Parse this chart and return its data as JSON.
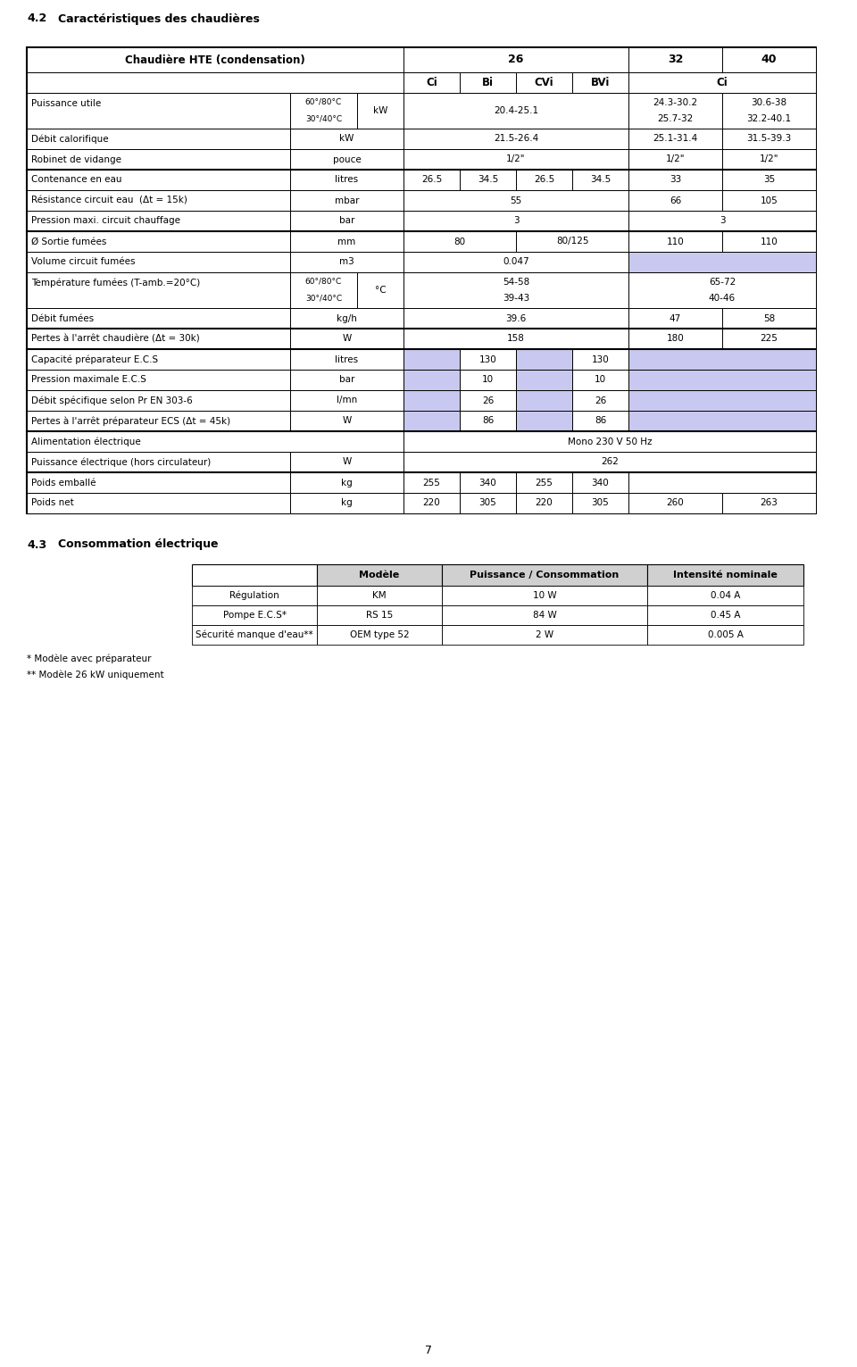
{
  "page_title_num": "4.2",
  "page_title_text": "  Caractéristiques des chaudières",
  "section2_num": "4.3",
  "section2_text": "   Consommation électrique",
  "footnote1": "* Modèle avec préparateur",
  "footnote2": "** Modèle 26 kW uniquement",
  "page_number": "7",
  "light_blue": "#c8c8f0",
  "table2_headers": [
    "",
    "Modèle",
    "Puissance / Consommation",
    "Intensité nominale"
  ],
  "table2_rows": [
    [
      "Régulation",
      "KM",
      "10 W",
      "0.04 A"
    ],
    [
      "Pompe E.C.S*",
      "RS 15",
      "84 W",
      "0.45 A"
    ],
    [
      "Sécurité manque d'eau**",
      "OEM type 52",
      "2 W",
      "0.005 A"
    ]
  ]
}
